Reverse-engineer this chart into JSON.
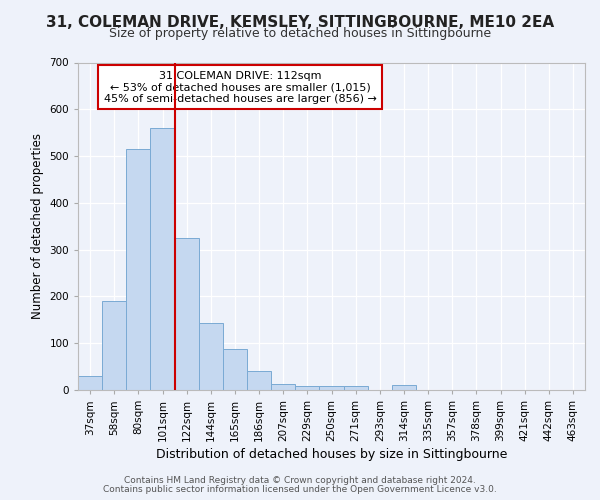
{
  "title_line1": "31, COLEMAN DRIVE, KEMSLEY, SITTINGBOURNE, ME10 2EA",
  "title_line2": "Size of property relative to detached houses in Sittingbourne",
  "xlabel": "Distribution of detached houses by size in Sittingbourne",
  "ylabel": "Number of detached properties",
  "categories": [
    "37sqm",
    "58sqm",
    "80sqm",
    "101sqm",
    "122sqm",
    "144sqm",
    "165sqm",
    "186sqm",
    "207sqm",
    "229sqm",
    "250sqm",
    "271sqm",
    "293sqm",
    "314sqm",
    "335sqm",
    "357sqm",
    "378sqm",
    "399sqm",
    "421sqm",
    "442sqm",
    "463sqm"
  ],
  "values": [
    30,
    190,
    515,
    560,
    325,
    143,
    88,
    40,
    13,
    8,
    8,
    8,
    0,
    10,
    0,
    0,
    0,
    0,
    0,
    0,
    0
  ],
  "bar_color": "#c5d8f0",
  "bar_edge_color": "#7aaad4",
  "vline_pos": 3.5,
  "vline_color": "#cc0000",
  "annotation_text": "31 COLEMAN DRIVE: 112sqm\n← 53% of detached houses are smaller (1,015)\n45% of semi-detached houses are larger (856) →",
  "annotation_box_color": "white",
  "annotation_box_edge": "#cc0000",
  "ylim": [
    0,
    700
  ],
  "yticks": [
    0,
    100,
    200,
    300,
    400,
    500,
    600,
    700
  ],
  "footer_line1": "Contains HM Land Registry data © Crown copyright and database right 2024.",
  "footer_line2": "Contains public sector information licensed under the Open Government Licence v3.0.",
  "bg_color": "#eef2fa",
  "plot_bg_color": "#eef2fa",
  "title_fontsize": 11,
  "subtitle_fontsize": 9,
  "xlabel_fontsize": 9,
  "ylabel_fontsize": 8.5,
  "tick_fontsize": 7.5,
  "annot_fontsize": 8,
  "footer_fontsize": 6.5
}
